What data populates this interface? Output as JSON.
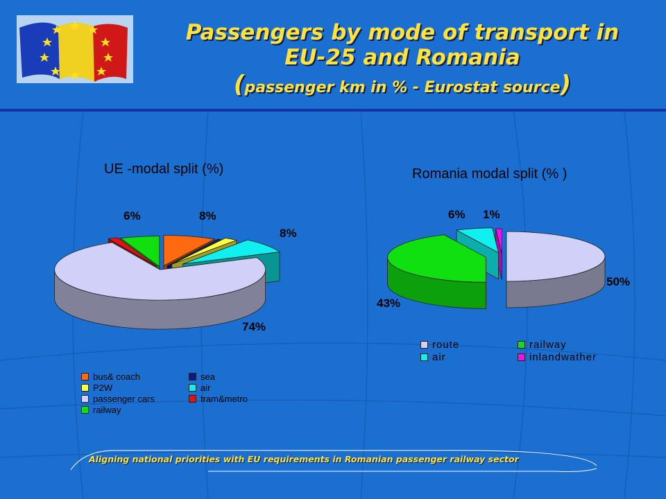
{
  "header": {
    "title_line1": "Passengers by mode of transport in",
    "title_line2": "EU-25 and Romania",
    "title_line3": "passenger km in % - Eurostat source"
  },
  "footer": {
    "text": "Aligning  national  priorities  with EU requirements in Romanian  passenger railway  sector"
  },
  "colors": {
    "background": "#1b6fd0",
    "title": "#ffe23a",
    "bus_coach": "#ff6a10",
    "sea": "#0a1a8c",
    "p2w": "#ffff40",
    "air": "#10f0f0",
    "passenger_cars": "#d0d0f8",
    "tram_metro": "#e81010",
    "railway": "#10e010",
    "route": "#d0d0f8",
    "inland_waterway": "#f010f0"
  },
  "chart_data": [
    {
      "type": "pie",
      "title": "UE -modal  split  (%)",
      "slices": [
        {
          "name": "bus& coach",
          "value": 8,
          "label": "8%"
        },
        {
          "name": "sea",
          "value": 0.5,
          "label": ""
        },
        {
          "name": "P2W",
          "value": 2,
          "label": ""
        },
        {
          "name": "air",
          "value": 8,
          "label": "8%"
        },
        {
          "name": "passenger cars",
          "value": 74,
          "label": "74%"
        },
        {
          "name": "tram&metro",
          "value": 1.5,
          "label": ""
        },
        {
          "name": "railway",
          "value": 6,
          "label": "6%"
        }
      ],
      "legend": [
        "bus& coach",
        "sea",
        "P2W",
        "air",
        "passenger cars",
        "tram&metro",
        "railway"
      ]
    },
    {
      "type": "pie",
      "title": "Romania modal split (% )",
      "slices": [
        {
          "name": "route",
          "value": 50,
          "label": "50%"
        },
        {
          "name": "railway",
          "value": 43,
          "label": "43%"
        },
        {
          "name": "air",
          "value": 6,
          "label": "6%"
        },
        {
          "name": "inlandwather",
          "value": 1,
          "label": "1%"
        }
      ],
      "legend": [
        "route",
        "railway",
        "air",
        "inlandwather"
      ]
    }
  ]
}
